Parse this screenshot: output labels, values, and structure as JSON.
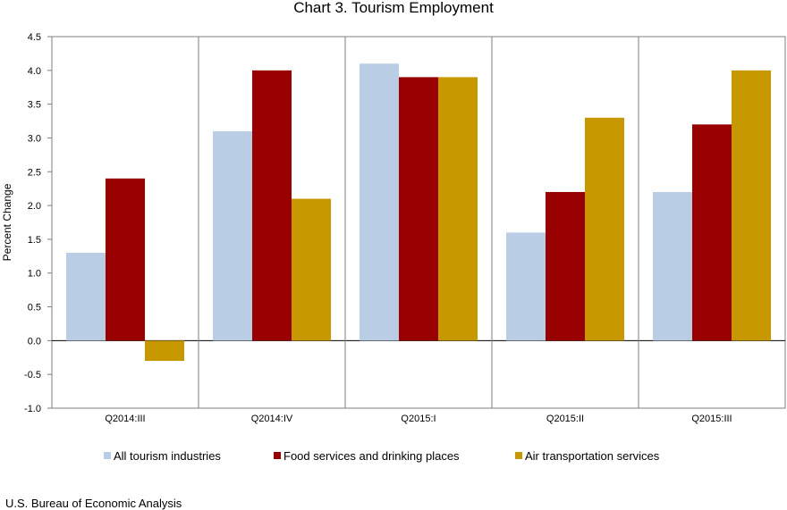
{
  "chart_data": {
    "type": "bar",
    "title": "Chart 3. Tourism Employment",
    "ylabel": "Percent Change",
    "xlabel": "",
    "ylim": [
      -1.0,
      4.5
    ],
    "yticks": [
      "4.5",
      "4.0",
      "3.5",
      "3.0",
      "2.5",
      "2.0",
      "1.5",
      "1.0",
      "0.5",
      "0.0",
      "-0.5",
      "-1.0"
    ],
    "categories": [
      "Q2014:III",
      "Q2014:IV",
      "Q2015:I",
      "Q2015:II",
      "Q2015:III"
    ],
    "series": [
      {
        "name": "All tourism industries",
        "color": "#B9CDE5",
        "values": [
          1.3,
          3.1,
          4.1,
          1.6,
          2.2
        ]
      },
      {
        "name": "Food services and drinking places",
        "color": "#990000",
        "values": [
          2.4,
          4.0,
          3.9,
          2.2,
          3.2
        ]
      },
      {
        "name": "Air transportation services",
        "color": "#C89800",
        "values": [
          -0.3,
          2.1,
          3.9,
          3.3,
          4.0
        ]
      }
    ],
    "grid": "vertical category separators",
    "legend_position": "bottom",
    "source": "U.S. Bureau of Economic Analysis"
  }
}
